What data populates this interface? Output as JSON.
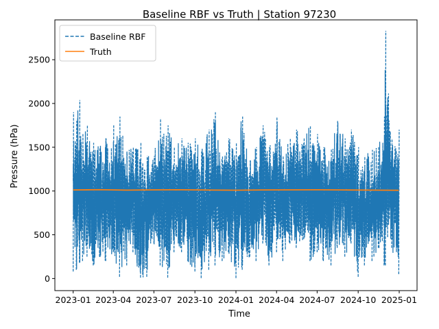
{
  "chart_data": {
    "type": "line",
    "title": "Baseline RBF vs Truth | Station 97230",
    "xlabel": "Time",
    "ylabel": "Pressure (hPa)",
    "x_range": [
      "2022-11-21",
      "2025-02-10"
    ],
    "ylim": [
      -138,
      2955
    ],
    "x_ticks": [
      "2023-01",
      "2023-04",
      "2023-07",
      "2023-10",
      "2024-01",
      "2024-04",
      "2024-07",
      "2024-10",
      "2025-01"
    ],
    "x_tick_dates": [
      "2023-01-01",
      "2023-04-01",
      "2023-07-01",
      "2023-10-01",
      "2024-01-01",
      "2024-04-01",
      "2024-07-01",
      "2024-10-01",
      "2025-01-01"
    ],
    "y_ticks": [
      0,
      500,
      1000,
      1500,
      2000,
      2500
    ],
    "grid": false,
    "legend": {
      "placement": "upper-left"
    },
    "series": [
      {
        "name": "Baseline RBF",
        "style": "dashed",
        "color": "#1f77b4",
        "x": [
          "2023-01-01",
          "2023-01-08",
          "2023-01-15",
          "2023-01-22",
          "2023-02-01",
          "2023-02-15",
          "2023-03-01",
          "2023-03-15",
          "2023-04-01",
          "2023-04-15",
          "2023-05-01",
          "2023-05-15",
          "2023-06-01",
          "2023-06-15",
          "2023-07-01",
          "2023-07-15",
          "2023-08-01",
          "2023-08-15",
          "2023-09-01",
          "2023-09-15",
          "2023-10-01",
          "2023-10-15",
          "2023-11-01",
          "2023-11-15",
          "2023-12-01",
          "2023-12-15",
          "2024-01-01",
          "2024-01-15",
          "2024-02-01",
          "2024-02-15",
          "2024-03-01",
          "2024-03-15",
          "2024-04-01",
          "2024-04-15",
          "2024-05-01",
          "2024-05-15",
          "2024-06-01",
          "2024-06-15",
          "2024-07-01",
          "2024-07-15",
          "2024-08-01",
          "2024-08-15",
          "2024-09-01",
          "2024-09-15",
          "2024-10-01",
          "2024-10-15",
          "2024-11-01",
          "2024-11-15",
          "2024-11-28",
          "2024-12-01",
          "2024-12-15",
          "2024-12-31"
        ],
        "y_min": [
          80,
          100,
          180,
          200,
          250,
          150,
          250,
          200,
          300,
          20,
          150,
          300,
          10,
          20,
          400,
          150,
          10,
          300,
          300,
          200,
          80,
          5,
          100,
          150,
          200,
          300,
          5,
          100,
          250,
          200,
          400,
          150,
          300,
          200,
          400,
          350,
          450,
          200,
          300,
          200,
          150,
          350,
          250,
          400,
          20,
          150,
          200,
          350,
          150,
          150,
          350,
          50
        ],
        "y_max": [
          1900,
          1800,
          2040,
          1650,
          1750,
          1550,
          1500,
          1600,
          1750,
          1850,
          1450,
          1500,
          1550,
          1400,
          1400,
          1830,
          1750,
          1500,
          1600,
          1550,
          1600,
          1450,
          1700,
          1900,
          1400,
          1600,
          1550,
          1850,
          1350,
          1500,
          1750,
          1500,
          1840,
          1400,
          1600,
          1700,
          1600,
          1750,
          1650,
          1500,
          1480,
          1800,
          1600,
          1700,
          1500,
          1400,
          1470,
          1500,
          1850,
          2830,
          1600,
          1700
        ]
      },
      {
        "name": "Truth",
        "style": "solid",
        "color": "#ff7f0e",
        "x": [
          "2023-01-01",
          "2023-03-01",
          "2023-05-01",
          "2023-07-01",
          "2023-09-01",
          "2023-11-01",
          "2024-01-01",
          "2024-03-01",
          "2024-05-01",
          "2024-07-01",
          "2024-09-01",
          "2024-11-01",
          "2024-12-31"
        ],
        "y": [
          1012,
          1015,
          1010,
          1013,
          1014,
          1011,
          1009,
          1012,
          1013,
          1014,
          1012,
          1010,
          1008
        ]
      }
    ]
  }
}
